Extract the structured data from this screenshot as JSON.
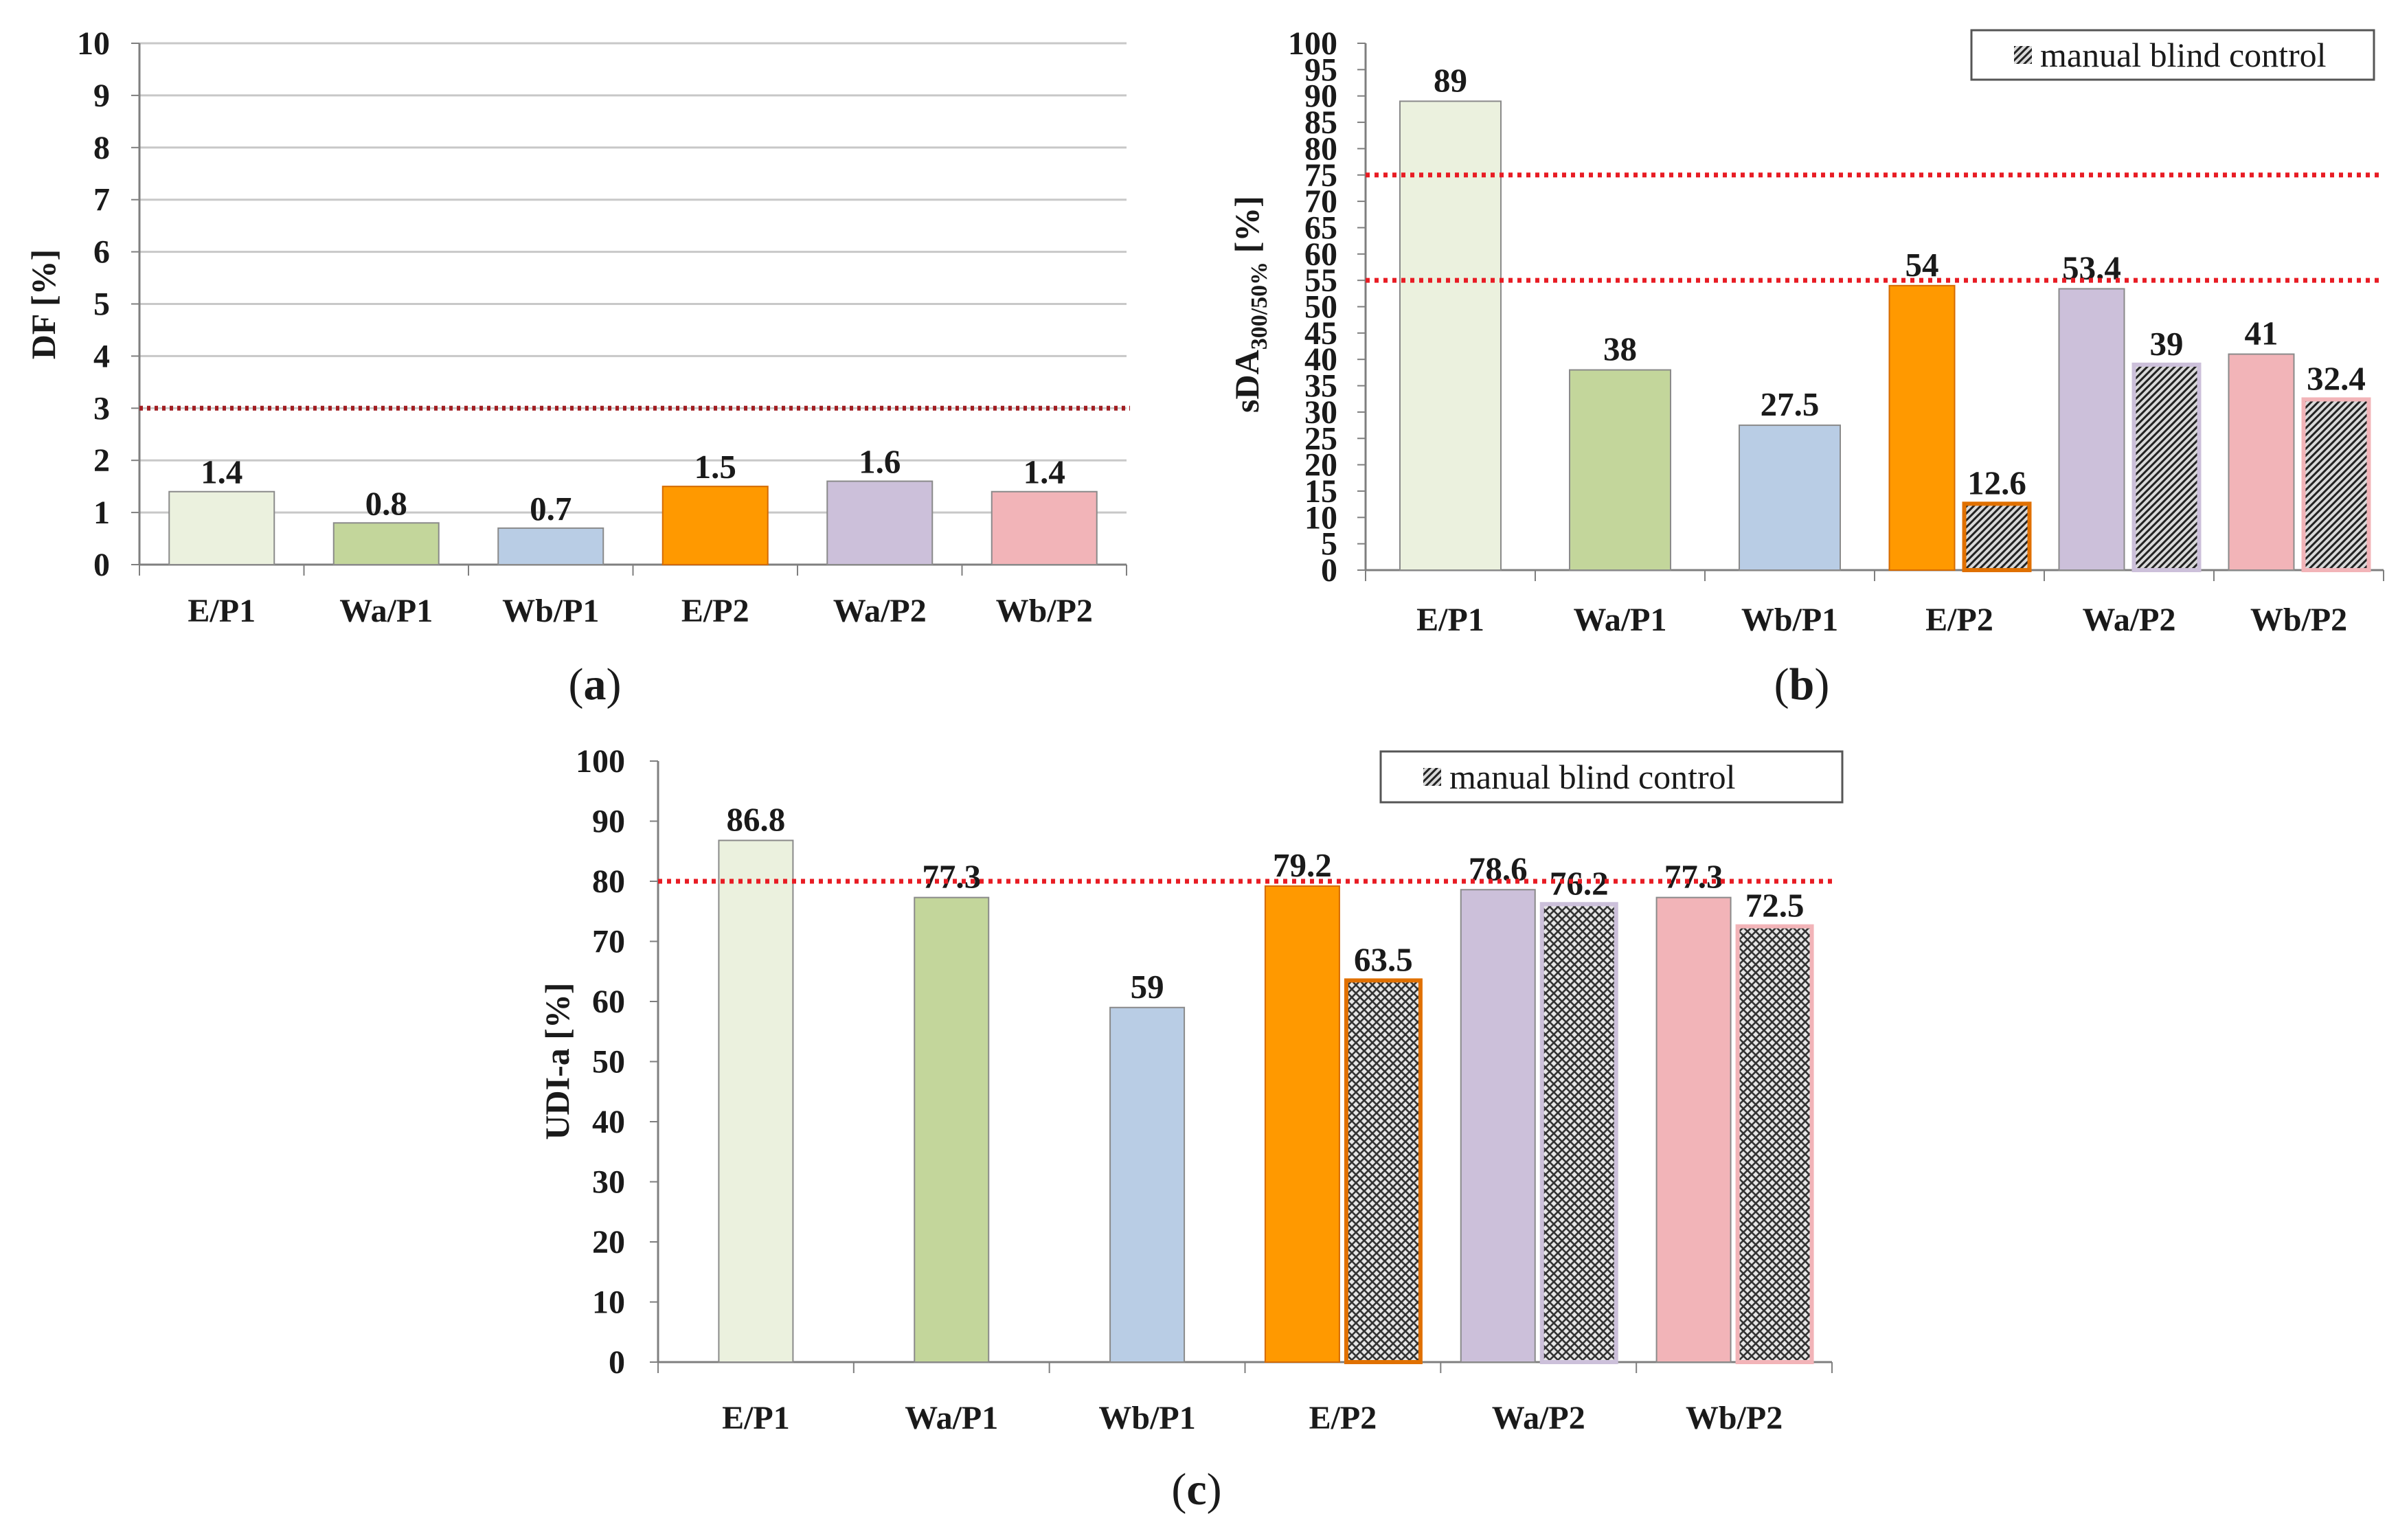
{
  "colors": {
    "E/P1": "#ebf1de",
    "Wa/P1": "#c3d69b",
    "Wb/P1": "#b9cde5",
    "E/P2": "#ff9900",
    "Wa/P2": "#ccc0da",
    "Wb/P2": "#f2b4b8",
    "threshold": "#e81c24",
    "threshold_a": "#a11d21",
    "grid": "#c8c8c8",
    "axis": "#7f7f7f"
  },
  "chart_data": [
    {
      "id": "a",
      "type": "bar",
      "panel_label": "(a)",
      "title": "",
      "ylabel": "DF [%]",
      "xlabel": "",
      "ylim": [
        0,
        10
      ],
      "yticks": [
        0,
        1,
        2,
        3,
        4,
        5,
        6,
        7,
        8,
        9,
        10
      ],
      "grid": true,
      "categories": [
        "E/P1",
        "Wa/P1",
        "Wb/P1",
        "E/P2",
        "Wa/P2",
        "Wb/P2"
      ],
      "series": [
        {
          "name": "default",
          "values": [
            1.4,
            0.8,
            0.7,
            1.5,
            1.6,
            1.4
          ],
          "labels": [
            "1.4",
            "0.8",
            "0.7",
            "1.5",
            "1.6",
            "1.4"
          ]
        }
      ],
      "thresholds": [
        3
      ]
    },
    {
      "id": "b",
      "type": "bar",
      "panel_label": "(b)",
      "title": "",
      "ylabel_main": "sDA",
      "ylabel_sub": "300/50%",
      "ylabel_tail": " [%]",
      "xlabel": "",
      "ylim": [
        0,
        100
      ],
      "yticks": [
        0,
        5,
        10,
        15,
        20,
        25,
        30,
        35,
        40,
        45,
        50,
        55,
        60,
        65,
        70,
        75,
        80,
        85,
        90,
        95,
        100
      ],
      "grid": false,
      "categories": [
        "E/P1",
        "Wa/P1",
        "Wb/P1",
        "E/P2",
        "Wa/P2",
        "Wb/P2"
      ],
      "series": [
        {
          "name": "default",
          "values": [
            89,
            38,
            27.5,
            54,
            53.4,
            41
          ],
          "labels": [
            "89",
            "38",
            "27.5",
            "54",
            "53.4",
            "41"
          ]
        },
        {
          "name": "manual blind control",
          "values": [
            null,
            null,
            null,
            12.6,
            39,
            32.4
          ],
          "labels": [
            "",
            "",
            "",
            "12.6",
            "39",
            "32.4"
          ]
        }
      ],
      "thresholds": [
        75,
        55
      ],
      "legend": {
        "text": "manual blind control",
        "position": "top-right"
      }
    },
    {
      "id": "c",
      "type": "bar",
      "panel_label": "(c)",
      "title": "",
      "ylabel": "UDI-a [%]",
      "xlabel": "",
      "ylim": [
        0,
        100
      ],
      "yticks": [
        0,
        10,
        20,
        30,
        40,
        50,
        60,
        70,
        80,
        90,
        100
      ],
      "grid": false,
      "categories": [
        "E/P1",
        "Wa/P1",
        "Wb/P1",
        "E/P2",
        "Wa/P2",
        "Wb/P2"
      ],
      "series": [
        {
          "name": "default",
          "values": [
            86.8,
            77.3,
            59,
            79.2,
            78.6,
            77.3
          ],
          "labels": [
            "86.8",
            "77.3",
            "59",
            "79.2",
            "78.6",
            "77.3"
          ]
        },
        {
          "name": "manual blind control",
          "values": [
            null,
            null,
            null,
            63.5,
            76.2,
            72.5
          ],
          "labels": [
            "",
            "",
            "",
            "63.5",
            "76.2",
            "72.5"
          ]
        }
      ],
      "thresholds": [
        80
      ],
      "legend": {
        "text": "manual blind control",
        "position": "top-right"
      }
    }
  ]
}
